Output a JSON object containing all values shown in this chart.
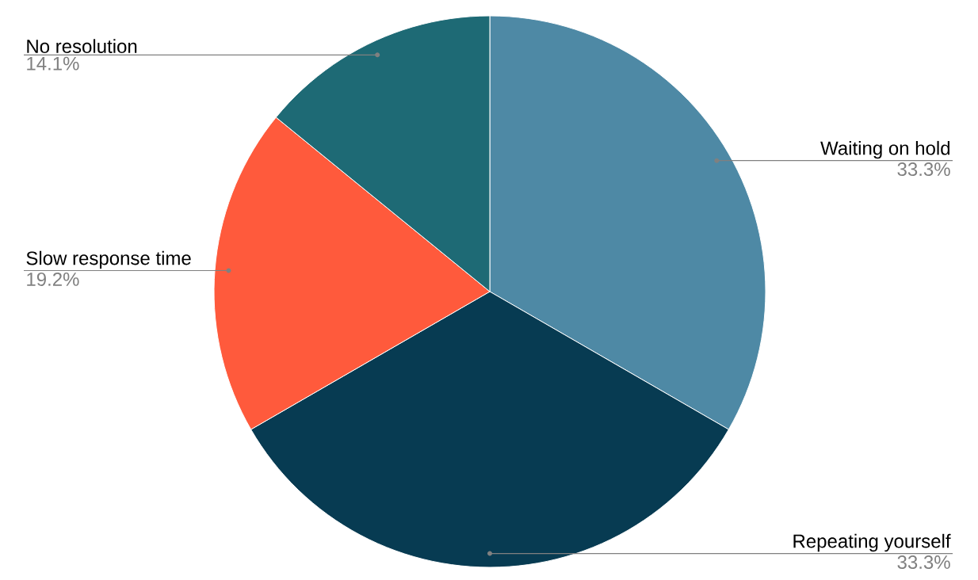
{
  "chart_data": {
    "type": "pie",
    "categories": [
      "Waiting on hold",
      "Repeating yourself",
      "Slow response time",
      "No resolution"
    ],
    "values": [
      33.3,
      33.3,
      19.2,
      14.1
    ],
    "value_labels": [
      "33.3%",
      "33.3%",
      "19.2%",
      "14.1%"
    ],
    "colors": [
      "#4e89a5",
      "#073b52",
      "#ff5a3c",
      "#1e6a75"
    ]
  }
}
